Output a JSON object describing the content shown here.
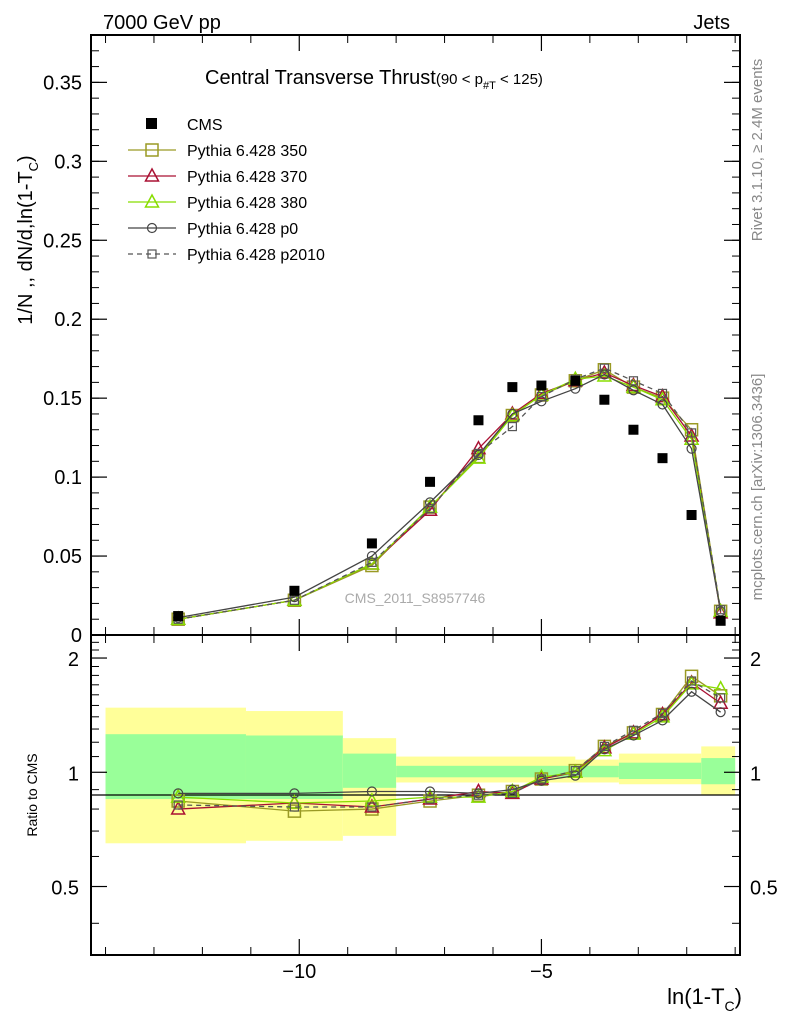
{
  "header": {
    "left": "7000 GeV pp",
    "right": "Jets"
  },
  "side": {
    "rivet": "Rivet 3.1.10, ≥ 2.4M events",
    "mcplots": "mcplots.cern.ch [arXiv:1306.3436]"
  },
  "chart_data": {
    "type": "line",
    "title": "Central Transverse Thrust",
    "title_range": "(90 < p",
    "title_range_sub": "#T",
    "title_range_end": "  < 125)",
    "watermark": "CMS_2011_S8957746",
    "xlabel": "ln(1-T",
    "xlabel_sub": "C",
    "xlabel_end": ")",
    "ylabel": "1/N ,, dN/d,ln(1-T",
    "ylabel_sub": "C",
    "ylabel_end": ")",
    "ratio_ylabel": "Ratio to CMS",
    "xlim": [
      -14.3,
      -0.9
    ],
    "ylim": [
      0,
      0.38
    ],
    "ratio_ylim": [
      0.33,
      2.3
    ],
    "x_ticks": [
      -10,
      -5
    ],
    "x_tick_labels": [
      "−10",
      "−5"
    ],
    "y_ticks": [
      0,
      0.05,
      0.1,
      0.15,
      0.2,
      0.25,
      0.3,
      0.35
    ],
    "y_tick_labels": [
      "0",
      "0.05",
      "0.1",
      "0.15",
      "0.2",
      "0.25",
      "0.3",
      "0.35"
    ],
    "ratio_ticks": [
      0.5,
      1,
      2
    ],
    "ratio_tick_labels": [
      "0.5",
      "1",
      "2"
    ],
    "x": [
      -12.5,
      -10.1,
      -8.5,
      -7.3,
      -6.3,
      -5.6,
      -5.0,
      -4.3,
      -3.7,
      -3.1,
      -2.5,
      -1.9,
      -1.3
    ],
    "data": {
      "name": "CMS",
      "values": [
        0.012,
        0.028,
        0.058,
        0.097,
        0.136,
        0.157,
        0.158,
        0.161,
        0.149,
        0.13,
        0.112,
        0.076,
        0.009
      ]
    },
    "series": [
      {
        "name": "Pythia 6.428 350",
        "color": "#9a9a24",
        "marker": "square",
        "dash": false,
        "values": [
          0.01,
          0.022,
          0.044,
          0.081,
          0.113,
          0.139,
          0.152,
          0.161,
          0.168,
          0.157,
          0.15,
          0.13,
          0.015
        ],
        "ratio": [
          0.84,
          0.79,
          0.8,
          0.84,
          0.87,
          0.89,
          0.96,
          1.01,
          1.17,
          1.27,
          1.42,
          1.79,
          1.59
        ]
      },
      {
        "name": "Pythia 6.428 370",
        "color": "#aa1133",
        "marker": "triangle",
        "dash": false,
        "values": [
          0.01,
          0.022,
          0.045,
          0.079,
          0.118,
          0.14,
          0.153,
          0.161,
          0.166,
          0.158,
          0.151,
          0.126,
          0.014
        ],
        "ratio": [
          0.8,
          0.83,
          0.81,
          0.85,
          0.89,
          0.88,
          0.96,
          1.0,
          1.16,
          1.27,
          1.42,
          1.72,
          1.52
        ]
      },
      {
        "name": "Pythia 6.428 380",
        "color": "#88dd00",
        "marker": "triangle",
        "dash": false,
        "values": [
          0.01,
          0.022,
          0.045,
          0.081,
          0.112,
          0.139,
          0.152,
          0.162,
          0.164,
          0.157,
          0.149,
          0.124,
          0.015
        ],
        "ratio": [
          0.86,
          0.83,
          0.84,
          0.86,
          0.86,
          0.89,
          0.97,
          1.0,
          1.14,
          1.26,
          1.4,
          1.71,
          1.66
        ]
      },
      {
        "name": "Pythia 6.428 p0",
        "color": "#444444",
        "marker": "circle",
        "dash": false,
        "values": [
          0.011,
          0.024,
          0.05,
          0.084,
          0.114,
          0.14,
          0.148,
          0.156,
          0.165,
          0.155,
          0.146,
          0.118,
          0.015
        ],
        "ratio": [
          0.88,
          0.88,
          0.89,
          0.89,
          0.88,
          0.9,
          0.95,
          0.98,
          1.15,
          1.25,
          1.37,
          1.63,
          1.44
        ]
      },
      {
        "name": "Pythia 6.428 p2010",
        "color": "#555555",
        "marker": "square-small",
        "dash": true,
        "values": [
          0.01,
          0.022,
          0.046,
          0.08,
          0.115,
          0.132,
          0.151,
          0.162,
          0.169,
          0.161,
          0.153,
          0.128,
          0.016
        ],
        "ratio": [
          0.82,
          0.81,
          0.81,
          0.85,
          0.87,
          0.88,
          0.96,
          1.01,
          1.17,
          1.29,
          1.43,
          1.74,
          1.57
        ]
      }
    ],
    "bands": [
      {
        "x0": -14.0,
        "x1": -11.1,
        "g": [
          0.85,
          1.26
        ],
        "y": [
          0.65,
          1.48
        ]
      },
      {
        "x0": -11.1,
        "x1": -9.1,
        "g": [
          0.85,
          1.25
        ],
        "y": [
          0.66,
          1.45
        ]
      },
      {
        "x0": -9.1,
        "x1": -8.0,
        "g": [
          0.91,
          1.12
        ],
        "y": [
          0.68,
          1.23
        ]
      },
      {
        "x0": -8.0,
        "x1": -4.3,
        "g": [
          0.97,
          1.04
        ],
        "y": [
          0.94,
          1.1
        ]
      },
      {
        "x0": -4.3,
        "x1": -3.4,
        "g": [
          0.97,
          1.04
        ],
        "y": [
          0.94,
          1.08
        ]
      },
      {
        "x0": -3.4,
        "x1": -1.7,
        "g": [
          0.96,
          1.06
        ],
        "y": [
          0.93,
          1.12
        ]
      },
      {
        "x0": -1.7,
        "x1": -1.0,
        "g": [
          0.93,
          1.09
        ],
        "y": [
          0.87,
          1.17
        ]
      }
    ]
  }
}
